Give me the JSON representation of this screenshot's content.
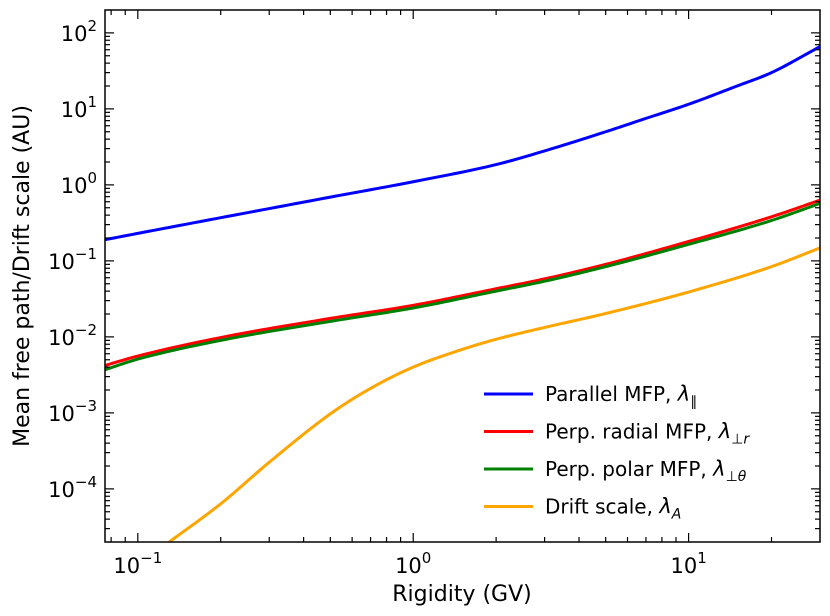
{
  "chart_data": {
    "type": "line",
    "xlabel": "Rigidity (GV)",
    "ylabel": "Mean free path/Drift scale (AU)",
    "xscale": "log",
    "yscale": "log",
    "xlim": [
      0.076,
      30
    ],
    "ylim": [
      2e-05,
      200
    ],
    "x_ticks": [
      {
        "value": 0.1,
        "base": "10",
        "exp": "−1"
      },
      {
        "value": 1,
        "base": "10",
        "exp": "0"
      },
      {
        "value": 10,
        "base": "10",
        "exp": "1"
      }
    ],
    "y_ticks": [
      {
        "value": 0.0001,
        "base": "10",
        "exp": "−4"
      },
      {
        "value": 0.001,
        "base": "10",
        "exp": "−3"
      },
      {
        "value": 0.01,
        "base": "10",
        "exp": "−2"
      },
      {
        "value": 0.1,
        "base": "10",
        "exp": "−1"
      },
      {
        "value": 1,
        "base": "10",
        "exp": "0"
      },
      {
        "value": 10,
        "base": "10",
        "exp": "1"
      },
      {
        "value": 100,
        "base": "10",
        "exp": "2"
      }
    ],
    "grid": false,
    "legend_position": "lower-right",
    "series": [
      {
        "key": "parallel",
        "label_text": "Parallel MFP, ",
        "label_symbol": "λ",
        "label_sub": "∥",
        "color": "#0000ff",
        "x": [
          0.076,
          0.1,
          0.2,
          0.5,
          1,
          2,
          3,
          5,
          7,
          10,
          15,
          20,
          30
        ],
        "y": [
          0.19,
          0.23,
          0.37,
          0.69,
          1.1,
          1.85,
          2.8,
          5.0,
          7.5,
          11.5,
          20,
          30,
          66
        ]
      },
      {
        "key": "perp_radial",
        "label_text": "Perp. radial MFP, ",
        "label_symbol": "λ",
        "label_sub": "⊥r",
        "color": "#ff0000",
        "x": [
          0.076,
          0.1,
          0.2,
          0.5,
          1,
          2,
          3,
          5,
          10,
          20,
          30
        ],
        "y": [
          0.0042,
          0.0056,
          0.0098,
          0.0175,
          0.026,
          0.043,
          0.058,
          0.09,
          0.18,
          0.38,
          0.63
        ]
      },
      {
        "key": "perp_polar",
        "label_text": "Perp. polar  MFP, ",
        "label_symbol": "λ",
        "label_sub": "⊥θ",
        "color": "#008000",
        "x": [
          0.076,
          0.1,
          0.2,
          0.5,
          1,
          2,
          3,
          5,
          10,
          20,
          30
        ],
        "y": [
          0.0037,
          0.0051,
          0.009,
          0.016,
          0.024,
          0.04,
          0.054,
          0.084,
          0.165,
          0.34,
          0.57
        ]
      },
      {
        "key": "drift",
        "label_text": "Drift scale, ",
        "label_symbol": "λ",
        "label_sub": "A",
        "color": "#ffa500",
        "x": [
          0.13,
          0.2,
          0.3,
          0.5,
          0.7,
          1,
          1.5,
          2,
          3,
          5,
          10,
          20,
          30
        ],
        "y": [
          2e-05,
          6.36e-05,
          0.000224,
          0.00097,
          0.0021,
          0.004,
          0.0068,
          0.0093,
          0.0133,
          0.0203,
          0.0389,
          0.084,
          0.148
        ]
      }
    ]
  }
}
